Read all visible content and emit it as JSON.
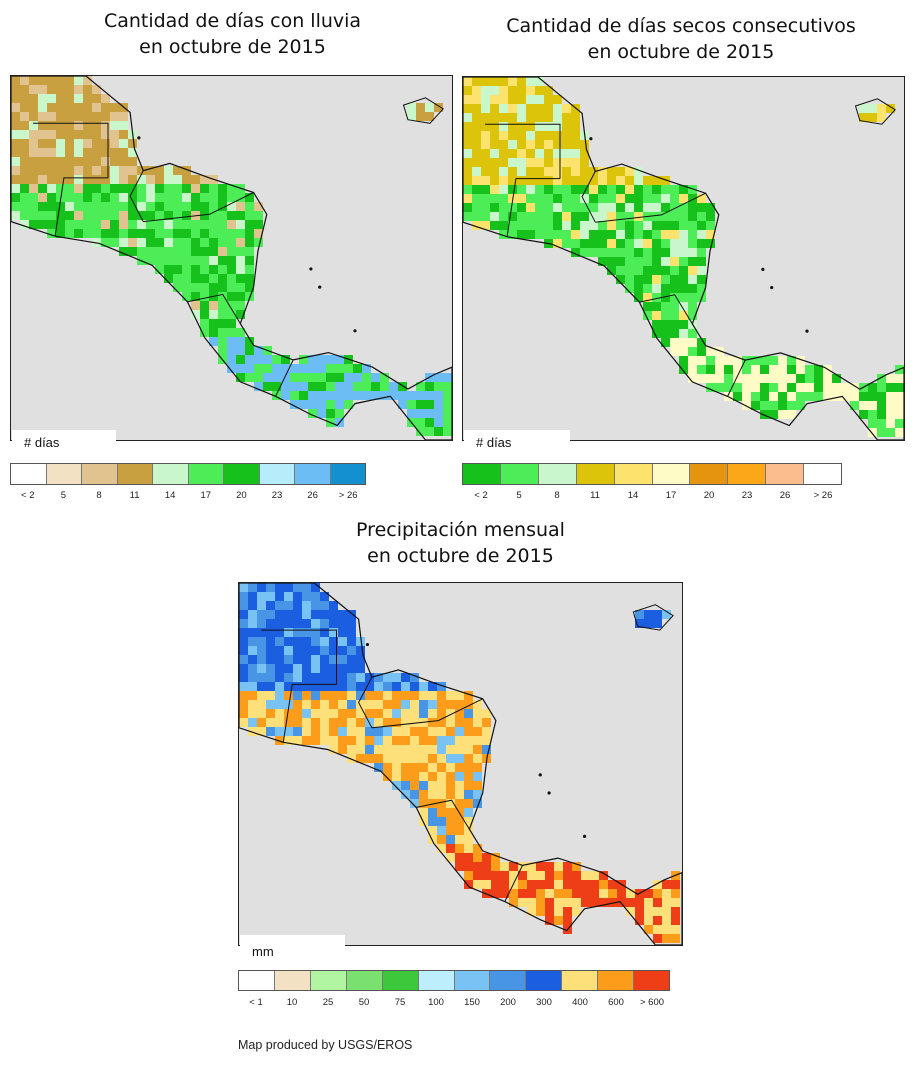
{
  "maps": [
    {
      "title_line1": "Cantidad de días con lluvia",
      "title_line2": "en octubre de 2015",
      "unit": "# días",
      "legend_colors": [
        "#ffffff",
        "#f3e1c4",
        "#e0c38f",
        "#c8a040",
        "#c9f7cb",
        "#4ded58",
        "#16c11c",
        "#b7ecfa",
        "#6cbdf4",
        "#1390d0"
      ],
      "legend_labels": [
        "< 2",
        "5",
        "8",
        "11",
        "14",
        "17",
        "20",
        "23",
        "26",
        "> 26"
      ],
      "land_palette": [
        "#c8a040",
        "#e0c38f",
        "#c9f7cb",
        "#4ded58",
        "#16c11c",
        "#6cbdf4",
        "#b7ecfa"
      ]
    },
    {
      "title_line1": "Cantidad de días secos consecutivos",
      "title_line2": "en octubre de 2015",
      "unit": "# días",
      "legend_colors": [
        "#16c11c",
        "#4ded58",
        "#c9f7cb",
        "#dcc40a",
        "#fbe36e",
        "#fffbc6",
        "#e59410",
        "#fba718",
        "#fbbd8d",
        "#ffffff"
      ],
      "legend_labels": [
        "< 2",
        "5",
        "8",
        "11",
        "14",
        "17",
        "20",
        "23",
        "26",
        "> 26"
      ],
      "land_palette": [
        "#dcc40a",
        "#fbe36e",
        "#c9f7cb",
        "#4ded58",
        "#16c11c",
        "#fffbc6"
      ]
    },
    {
      "title_line1": "Precipitación mensual",
      "title_line2": "en octubre de 2015",
      "unit": "mm",
      "legend_colors": [
        "#ffffff",
        "#f3e1c4",
        "#b1f4a2",
        "#7ae070",
        "#3cc83a",
        "#bdeefb",
        "#78c2f4",
        "#4895e6",
        "#1c5ee0",
        "#fde07a",
        "#fb9d1a",
        "#ee3e18"
      ],
      "legend_labels": [
        "< 1",
        "10",
        "25",
        "50",
        "75",
        "100",
        "150",
        "200",
        "300",
        "400",
        "600",
        "> 600"
      ],
      "land_palette": [
        "#1c5ee0",
        "#4895e6",
        "#78c2f4",
        "#fde07a",
        "#fb9d1a",
        "#ee3e18",
        "#3cc83a"
      ]
    }
  ],
  "credit": "Map produced by USGS/EROS"
}
